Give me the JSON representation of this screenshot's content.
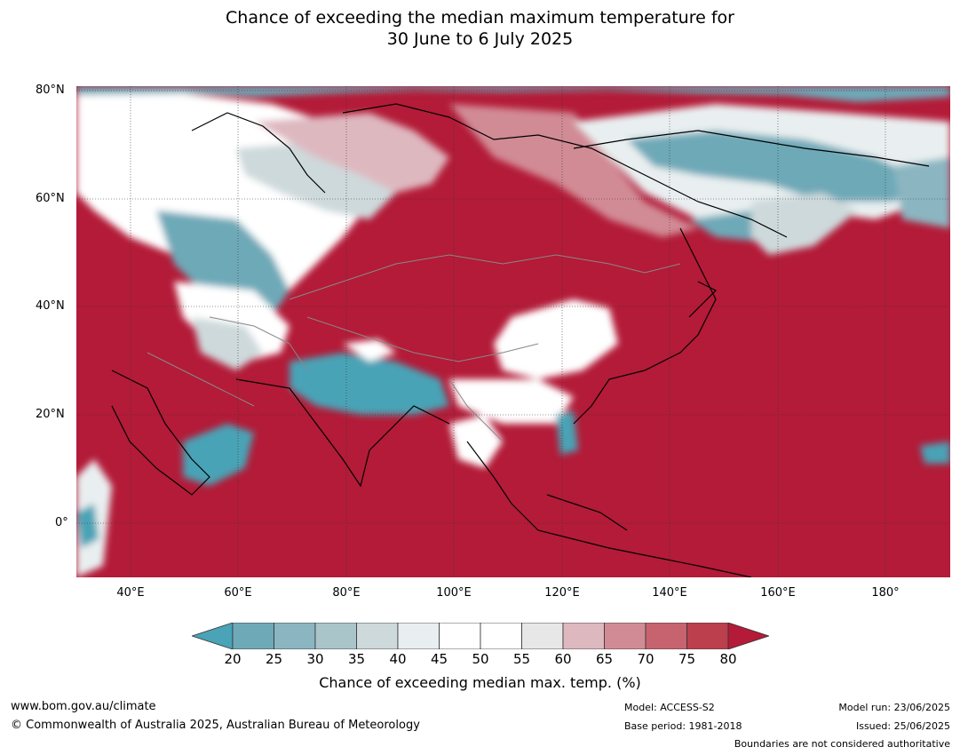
{
  "title": {
    "line1": "Chance of exceeding the median maximum temperature for",
    "line2": "30 June to 6 July 2025"
  },
  "map": {
    "lat_labels": [
      "80°N",
      "60°N",
      "40°N",
      "20°N",
      "0°"
    ],
    "lon_labels": [
      "40°E",
      "60°E",
      "80°E",
      "100°E",
      "120°E",
      "140°E",
      "160°E",
      "180°"
    ],
    "lon_range": [
      30,
      192
    ],
    "lat_range": [
      -10,
      81
    ]
  },
  "colorbar": {
    "ticks": [
      "20",
      "25",
      "30",
      "35",
      "40",
      "45",
      "50",
      "55",
      "60",
      "65",
      "70",
      "75",
      "80"
    ],
    "below_color": "#4aa3b6",
    "above_color": "#b31b38",
    "colors": [
      "#6ea9b8",
      "#8bb6c1",
      "#a9c5ca",
      "#ced9db",
      "#e9eff0",
      "#ffffff",
      "#ffffff",
      "#e7e7e7",
      "#deb8bf",
      "#d18b95",
      "#c6636f",
      "#bc3f4d"
    ],
    "label": "Chance of exceeding median max. temp. (%)"
  },
  "footer": {
    "url": "www.bom.gov.au/climate",
    "copyright": "© Commonwealth of Australia 2025, Australian Bureau of Meteorology",
    "model": "Model: ACCESS-S2",
    "base_period": "Base period: 1981-2018",
    "model_run": "Model run: 23/06/2025",
    "issued": "Issued: 25/06/2025",
    "disclaimer": "Boundaries are not considered authoritative"
  }
}
